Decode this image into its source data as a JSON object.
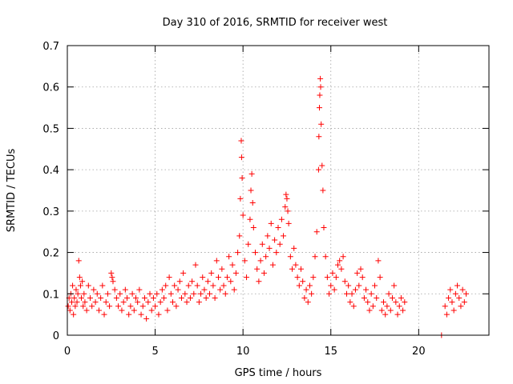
{
  "chart_data": {
    "type": "scatter",
    "title": "Day 310 of 2016, SRMTID for receiver west",
    "xlabel": "GPS time / hours",
    "ylabel": "SRMTID / TECUs",
    "xlim": [
      0,
      24
    ],
    "ylim": [
      0,
      0.7
    ],
    "xticks": [
      0,
      5,
      10,
      15,
      20
    ],
    "yticks": [
      0,
      0.1,
      0.2,
      0.3,
      0.4,
      0.5,
      0.6,
      0.7
    ],
    "xtick_labels": [
      "0",
      "5",
      "10",
      "15",
      "20"
    ],
    "ytick_labels": [
      "0",
      "0.1",
      "0.2",
      "0.3",
      "0.4",
      "0.5",
      "0.6",
      "0.7"
    ],
    "grid": true,
    "marker": "+",
    "color": "#ff0000",
    "series": [
      {
        "name": "SRMTID",
        "points": [
          [
            0.05,
            0.07
          ],
          [
            0.1,
            0.09
          ],
          [
            0.15,
            0.06
          ],
          [
            0.2,
            0.1
          ],
          [
            0.25,
            0.08
          ],
          [
            0.3,
            0.12
          ],
          [
            0.35,
            0.05
          ],
          [
            0.4,
            0.09
          ],
          [
            0.45,
            0.07
          ],
          [
            0.5,
            0.11
          ],
          [
            0.55,
            0.08
          ],
          [
            0.6,
            0.1
          ],
          [
            0.65,
            0.18
          ],
          [
            0.7,
            0.14
          ],
          [
            0.75,
            0.12
          ],
          [
            0.8,
            0.09
          ],
          [
            0.85,
            0.13
          ],
          [
            0.9,
            0.07
          ],
          [
            0.95,
            0.1
          ],
          [
            1.0,
            0.08
          ],
          [
            1.1,
            0.06
          ],
          [
            1.2,
            0.12
          ],
          [
            1.3,
            0.09
          ],
          [
            1.4,
            0.07
          ],
          [
            1.5,
            0.11
          ],
          [
            1.6,
            0.08
          ],
          [
            1.7,
            0.1
          ],
          [
            1.8,
            0.06
          ],
          [
            1.9,
            0.09
          ],
          [
            2.0,
            0.12
          ],
          [
            2.1,
            0.05
          ],
          [
            2.2,
            0.08
          ],
          [
            2.3,
            0.1
          ],
          [
            2.4,
            0.07
          ],
          [
            2.5,
            0.15
          ],
          [
            2.55,
            0.14
          ],
          [
            2.6,
            0.13
          ],
          [
            2.7,
            0.11
          ],
          [
            2.8,
            0.09
          ],
          [
            2.9,
            0.07
          ],
          [
            3.0,
            0.1
          ],
          [
            3.1,
            0.06
          ],
          [
            3.2,
            0.08
          ],
          [
            3.3,
            0.11
          ],
          [
            3.4,
            0.09
          ],
          [
            3.5,
            0.05
          ],
          [
            3.6,
            0.07
          ],
          [
            3.7,
            0.1
          ],
          [
            3.8,
            0.06
          ],
          [
            3.9,
            0.09
          ],
          [
            4.0,
            0.08
          ],
          [
            4.1,
            0.11
          ],
          [
            4.2,
            0.05
          ],
          [
            4.3,
            0.07
          ],
          [
            4.4,
            0.09
          ],
          [
            4.5,
            0.04
          ],
          [
            4.6,
            0.08
          ],
          [
            4.7,
            0.1
          ],
          [
            4.8,
            0.06
          ],
          [
            4.9,
            0.09
          ],
          [
            5.0,
            0.07
          ],
          [
            5.1,
            0.1
          ],
          [
            5.2,
            0.05
          ],
          [
            5.3,
            0.08
          ],
          [
            5.4,
            0.11
          ],
          [
            5.5,
            0.09
          ],
          [
            5.6,
            0.12
          ],
          [
            5.7,
            0.06
          ],
          [
            5.8,
            0.14
          ],
          [
            5.9,
            0.1
          ],
          [
            6.0,
            0.08
          ],
          [
            6.1,
            0.12
          ],
          [
            6.2,
            0.07
          ],
          [
            6.3,
            0.11
          ],
          [
            6.4,
            0.13
          ],
          [
            6.5,
            0.09
          ],
          [
            6.6,
            0.15
          ],
          [
            6.7,
            0.1
          ],
          [
            6.8,
            0.08
          ],
          [
            6.9,
            0.12
          ],
          [
            7.0,
            0.09
          ],
          [
            7.1,
            0.13
          ],
          [
            7.2,
            0.1
          ],
          [
            7.3,
            0.17
          ],
          [
            7.4,
            0.12
          ],
          [
            7.5,
            0.08
          ],
          [
            7.6,
            0.1
          ],
          [
            7.7,
            0.14
          ],
          [
            7.8,
            0.11
          ],
          [
            7.9,
            0.09
          ],
          [
            8.0,
            0.13
          ],
          [
            8.1,
            0.1
          ],
          [
            8.2,
            0.15
          ],
          [
            8.3,
            0.12
          ],
          [
            8.4,
            0.09
          ],
          [
            8.5,
            0.18
          ],
          [
            8.6,
            0.14
          ],
          [
            8.7,
            0.11
          ],
          [
            8.8,
            0.16
          ],
          [
            8.9,
            0.12
          ],
          [
            9.0,
            0.1
          ],
          [
            9.1,
            0.14
          ],
          [
            9.2,
            0.19
          ],
          [
            9.3,
            0.13
          ],
          [
            9.4,
            0.17
          ],
          [
            9.5,
            0.11
          ],
          [
            9.6,
            0.15
          ],
          [
            9.7,
            0.2
          ],
          [
            9.8,
            0.24
          ],
          [
            9.85,
            0.33
          ],
          [
            9.9,
            0.47
          ],
          [
            9.92,
            0.43
          ],
          [
            9.95,
            0.38
          ],
          [
            10.0,
            0.29
          ],
          [
            10.1,
            0.18
          ],
          [
            10.2,
            0.14
          ],
          [
            10.3,
            0.22
          ],
          [
            10.4,
            0.28
          ],
          [
            10.45,
            0.35
          ],
          [
            10.5,
            0.39
          ],
          [
            10.55,
            0.32
          ],
          [
            10.6,
            0.26
          ],
          [
            10.7,
            0.2
          ],
          [
            10.8,
            0.16
          ],
          [
            10.9,
            0.13
          ],
          [
            11.0,
            0.18
          ],
          [
            11.1,
            0.22
          ],
          [
            11.2,
            0.15
          ],
          [
            11.3,
            0.19
          ],
          [
            11.4,
            0.24
          ],
          [
            11.5,
            0.21
          ],
          [
            11.6,
            0.27
          ],
          [
            11.7,
            0.17
          ],
          [
            11.8,
            0.23
          ],
          [
            11.9,
            0.2
          ],
          [
            12.0,
            0.26
          ],
          [
            12.1,
            0.22
          ],
          [
            12.2,
            0.28
          ],
          [
            12.3,
            0.24
          ],
          [
            12.4,
            0.31
          ],
          [
            12.45,
            0.34
          ],
          [
            12.5,
            0.33
          ],
          [
            12.55,
            0.3
          ],
          [
            12.6,
            0.27
          ],
          [
            12.7,
            0.19
          ],
          [
            12.8,
            0.16
          ],
          [
            12.9,
            0.21
          ],
          [
            13.0,
            0.17
          ],
          [
            13.1,
            0.14
          ],
          [
            13.2,
            0.12
          ],
          [
            13.3,
            0.16
          ],
          [
            13.4,
            0.13
          ],
          [
            13.5,
            0.09
          ],
          [
            13.6,
            0.11
          ],
          [
            13.7,
            0.08
          ],
          [
            13.8,
            0.12
          ],
          [
            13.9,
            0.1
          ],
          [
            14.0,
            0.14
          ],
          [
            14.1,
            0.19
          ],
          [
            14.2,
            0.25
          ],
          [
            14.3,
            0.4
          ],
          [
            14.32,
            0.48
          ],
          [
            14.35,
            0.55
          ],
          [
            14.37,
            0.58
          ],
          [
            14.4,
            0.62
          ],
          [
            14.42,
            0.6
          ],
          [
            14.45,
            0.51
          ],
          [
            14.5,
            0.41
          ],
          [
            14.55,
            0.35
          ],
          [
            14.6,
            0.26
          ],
          [
            14.7,
            0.19
          ],
          [
            14.8,
            0.14
          ],
          [
            14.9,
            0.1
          ],
          [
            15.0,
            0.12
          ],
          [
            15.1,
            0.15
          ],
          [
            15.2,
            0.11
          ],
          [
            15.3,
            0.14
          ],
          [
            15.4,
            0.17
          ],
          [
            15.5,
            0.18
          ],
          [
            15.6,
            0.16
          ],
          [
            15.7,
            0.19
          ],
          [
            15.8,
            0.13
          ],
          [
            15.9,
            0.1
          ],
          [
            16.0,
            0.12
          ],
          [
            16.1,
            0.08
          ],
          [
            16.2,
            0.1
          ],
          [
            16.3,
            0.07
          ],
          [
            16.4,
            0.11
          ],
          [
            16.5,
            0.15
          ],
          [
            16.6,
            0.12
          ],
          [
            16.7,
            0.16
          ],
          [
            16.8,
            0.14
          ],
          [
            16.9,
            0.09
          ],
          [
            17.0,
            0.11
          ],
          [
            17.1,
            0.08
          ],
          [
            17.2,
            0.06
          ],
          [
            17.3,
            0.1
          ],
          [
            17.4,
            0.07
          ],
          [
            17.5,
            0.12
          ],
          [
            17.6,
            0.09
          ],
          [
            17.7,
            0.18
          ],
          [
            17.8,
            0.14
          ],
          [
            17.9,
            0.06
          ],
          [
            18.0,
            0.08
          ],
          [
            18.1,
            0.05
          ],
          [
            18.2,
            0.07
          ],
          [
            18.3,
            0.1
          ],
          [
            18.4,
            0.06
          ],
          [
            18.5,
            0.09
          ],
          [
            18.6,
            0.12
          ],
          [
            18.7,
            0.08
          ],
          [
            18.8,
            0.05
          ],
          [
            18.9,
            0.07
          ],
          [
            19.0,
            0.09
          ],
          [
            19.1,
            0.06
          ],
          [
            19.2,
            0.08
          ],
          [
            21.3,
            0.0
          ],
          [
            21.5,
            0.07
          ],
          [
            21.6,
            0.05
          ],
          [
            21.7,
            0.09
          ],
          [
            21.8,
            0.11
          ],
          [
            21.9,
            0.08
          ],
          [
            22.0,
            0.06
          ],
          [
            22.1,
            0.1
          ],
          [
            22.2,
            0.12
          ],
          [
            22.3,
            0.09
          ],
          [
            22.4,
            0.07
          ],
          [
            22.5,
            0.11
          ],
          [
            22.6,
            0.08
          ],
          [
            22.7,
            0.1
          ]
        ]
      }
    ]
  }
}
